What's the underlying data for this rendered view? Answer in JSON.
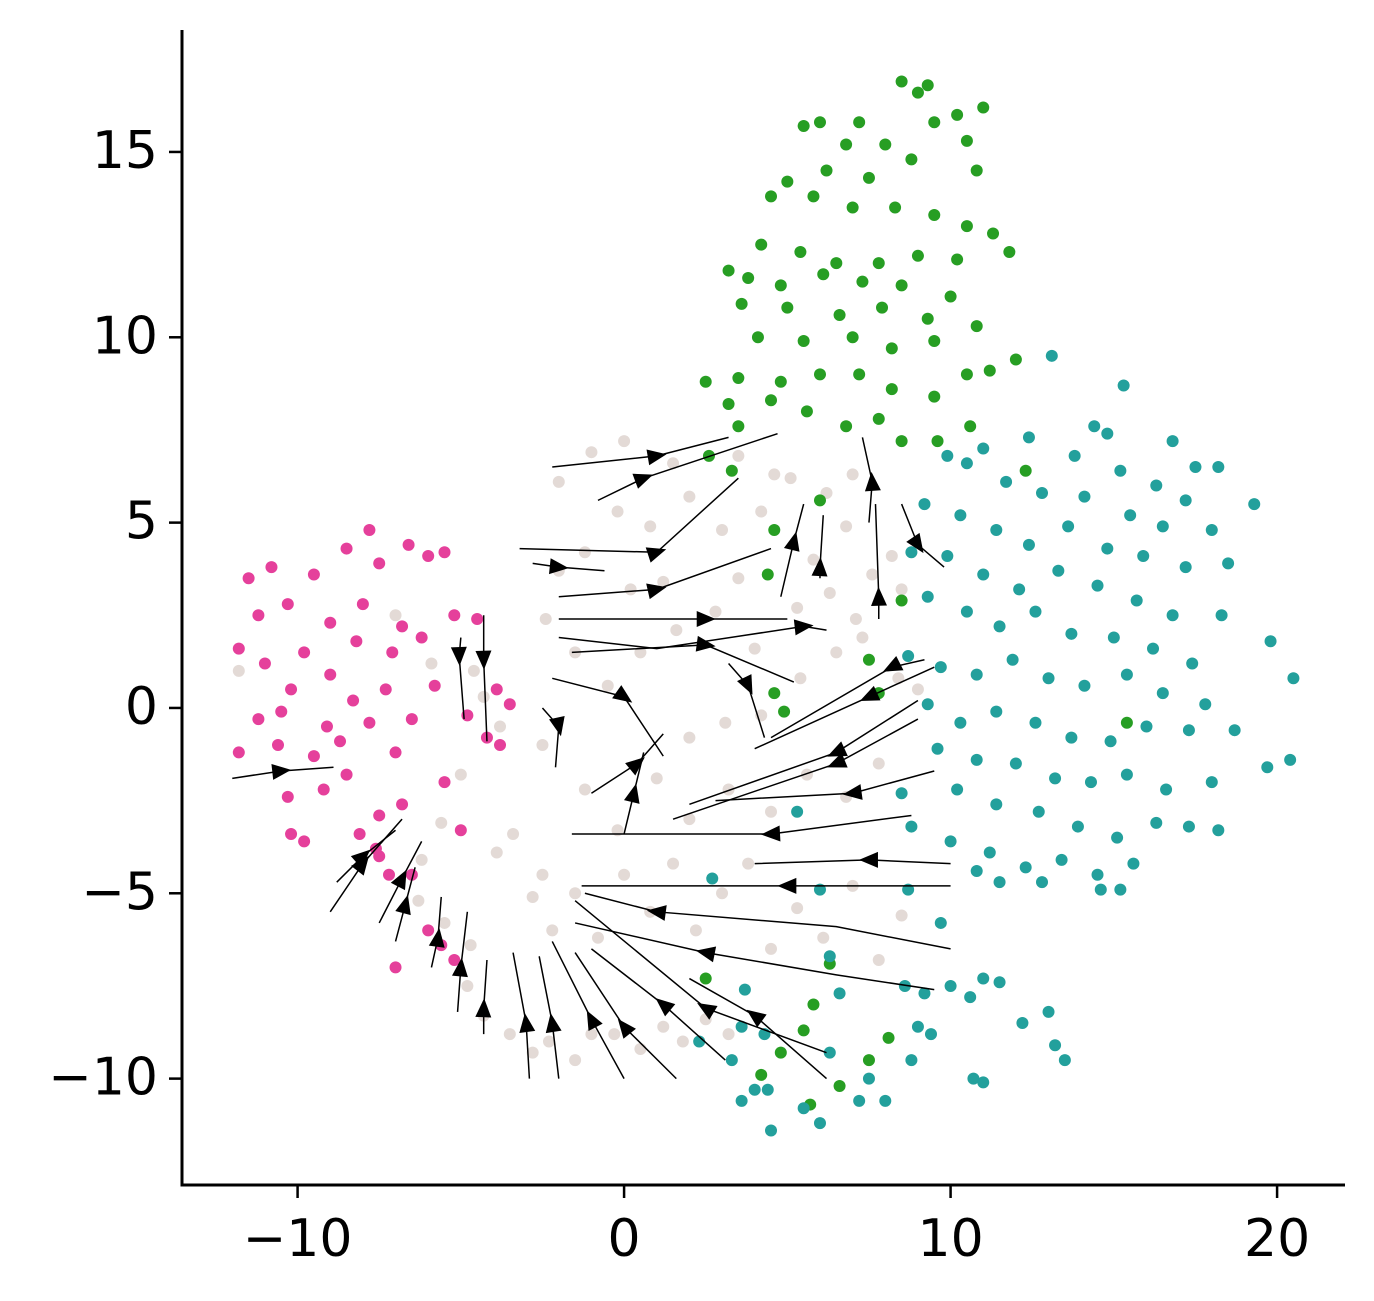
{
  "chart_data": {
    "type": "scatter",
    "xlim": [
      -13.54,
      22.08
    ],
    "ylim": [
      -12.87,
      18.29
    ],
    "xticks": [
      {
        "value": -10,
        "label": "−10"
      },
      0,
      10,
      20
    ],
    "yticks": [
      {
        "value": -10,
        "label": "−10"
      },
      {
        "value": -5,
        "label": "−5"
      },
      0,
      5,
      10,
      15
    ],
    "series": [
      {
        "color": "#e3dad6",
        "x": [
          -11.8,
          -7,
          -5.9,
          -4.6,
          -4.3,
          -3.8,
          -5,
          -5.6,
          -6.2,
          -6.3,
          -5.5,
          -4.7,
          -4.8,
          -4.3,
          -3.5,
          -2.8,
          -2.3,
          -1.5,
          -1,
          -0.3,
          0.5,
          1.2,
          1.8,
          2.5,
          3.2,
          -3.4,
          -3.9,
          -2.8,
          -2.2,
          -1.5,
          -0.8,
          0,
          0.8,
          1.5,
          2.2,
          3,
          3.8,
          4.5,
          5.3,
          6.1,
          7,
          7.8,
          8.5,
          2,
          3.2,
          4.5,
          5.6,
          6.8,
          7.8,
          1,
          2,
          3.1,
          4.2,
          5.4,
          6.5,
          7.3,
          8.4,
          9,
          -1.5,
          -0.5,
          0.5,
          1.6,
          2.8,
          4,
          5.3,
          6.3,
          7.1,
          -2.4,
          -2,
          -1.2,
          -0.2,
          0.8,
          2,
          3,
          4.2,
          5.1,
          6.2,
          7,
          -2,
          -1,
          0,
          1.5,
          3.5,
          4.6,
          6.8,
          7.6,
          8.2,
          8.5,
          0.2,
          1.2,
          3.5,
          5.8,
          -1.2,
          -0.2,
          -2.5,
          -2.5
        ],
        "y": [
          1,
          2.5,
          1.2,
          1,
          0.3,
          -0.5,
          -1.8,
          -3.1,
          -4.1,
          -5.2,
          -5.8,
          -6.4,
          -7.5,
          -8.3,
          -8.8,
          -9.3,
          -9,
          -9.5,
          -8.8,
          -8.8,
          -9.2,
          -8.6,
          -9,
          -8.4,
          -8.8,
          -3.4,
          -3.9,
          -5.1,
          -6,
          -5,
          -6.2,
          -4.5,
          -5.5,
          -4.2,
          -6,
          -5,
          -4.2,
          -6.5,
          -5.4,
          -6.2,
          -4.8,
          -6.8,
          -5.6,
          -3,
          -2.2,
          -2.8,
          -1.8,
          -2.4,
          -1.5,
          -1.9,
          -0.8,
          -0.4,
          -0.2,
          0.8,
          1.5,
          1.9,
          0.8,
          0.5,
          1.5,
          0.6,
          1.5,
          2.1,
          2.6,
          1.6,
          2.7,
          3.1,
          2.4,
          2.4,
          3.7,
          4.2,
          5.3,
          4.9,
          5.7,
          4.8,
          5.3,
          6.2,
          5.8,
          6.3,
          6.1,
          6.9,
          7.2,
          6.6,
          6.8,
          6.3,
          4.9,
          3.6,
          4.1,
          3.2,
          3.2,
          3.4,
          3.5,
          4,
          -2.2,
          -3.3,
          -1,
          -4.5
        ]
      },
      {
        "color": "#e5409b",
        "x": [
          -11.5,
          -10.8,
          -11.2,
          -10.3,
          -9.5,
          -8.5,
          -7.8,
          -7.5,
          -6.6,
          -6,
          -5.5,
          -9.8,
          -11,
          -11.8,
          -10.2,
          -9,
          -8.2,
          -7.1,
          -6.2,
          -5.2,
          -4.5,
          -11.2,
          -10.6,
          -11.8,
          -9.5,
          -8.7,
          -7.8,
          -7,
          -6.5,
          -5.8,
          -4.8,
          -3.5,
          -3.8,
          -10.3,
          -9.2,
          -8.5,
          -7.5,
          -6.8,
          -5.5,
          -5,
          -10.2,
          -9.8,
          -8.1,
          -7.6,
          -7.2,
          -6.5,
          -6,
          -5.6,
          -5.2,
          -7,
          -7.5,
          -9,
          -8,
          -6.8,
          -10.5,
          -9.1,
          -8.3,
          -7.3,
          -4.2,
          -3.9
        ],
        "y": [
          3.5,
          3.8,
          2.5,
          2.8,
          3.6,
          4.3,
          4.8,
          3.9,
          4.4,
          4.1,
          4.2,
          1.5,
          1.2,
          1.6,
          0.5,
          0.9,
          1.8,
          1.5,
          1.9,
          2.5,
          2.4,
          -0.3,
          -1,
          -1.2,
          -1.3,
          -0.9,
          -0.4,
          -1.2,
          -0.3,
          0.6,
          -0.2,
          0.1,
          -1,
          -2.4,
          -2.2,
          -1.8,
          -2.9,
          -2.6,
          -2,
          -3.3,
          -3.4,
          -3.6,
          -3.4,
          -3.8,
          -4.5,
          -4.5,
          -6,
          -6.4,
          -6.8,
          -7,
          -4,
          2.3,
          2.8,
          2.2,
          -0.1,
          -0.5,
          0.2,
          0.5,
          -0.8,
          0.5
        ]
      },
      {
        "color": "#279e23",
        "x": [
          8.5,
          9,
          9.3,
          7.2,
          6,
          5.5,
          6.8,
          8,
          9.5,
          10.2,
          11,
          10.5,
          5,
          6.2,
          7.5,
          8.8,
          10.8,
          4.5,
          5.8,
          7,
          8.3,
          9.5,
          10.5,
          11.3,
          4.2,
          5.4,
          6.5,
          7.8,
          9,
          10.2,
          11.8,
          3.8,
          4.8,
          6.1,
          7.3,
          8.5,
          10,
          3.2,
          3.6,
          5,
          6.6,
          7.9,
          9.3,
          10.8,
          4.1,
          5.5,
          7,
          8.2,
          9.5,
          11.2,
          12,
          2.5,
          3.5,
          4.8,
          6,
          7.2,
          8.2,
          9.5,
          10.5,
          3.2,
          4.5,
          5.6,
          6.8,
          7.8,
          8.5,
          9.6,
          10.6,
          3.5,
          2.6,
          3.3,
          4.6,
          4.4,
          6,
          8.5,
          7.5,
          4.6,
          7.8,
          4.9,
          12.3,
          15.4,
          2.5,
          4.2,
          4.8,
          5.5,
          5.8,
          6.3,
          6.6,
          7.5,
          8.1,
          5.7
        ],
        "y": [
          16.9,
          16.6,
          16.8,
          15.8,
          15.8,
          15.7,
          15.2,
          15.2,
          15.8,
          16,
          16.2,
          15.3,
          14.2,
          14.5,
          14.3,
          14.8,
          14.5,
          13.8,
          13.8,
          13.5,
          13.5,
          13.3,
          13,
          12.8,
          12.5,
          12.3,
          12,
          12,
          12.2,
          12.1,
          12.3,
          11.6,
          11.4,
          11.7,
          11.5,
          11.4,
          11.1,
          11.8,
          10.9,
          10.8,
          10.6,
          10.8,
          10.5,
          10.3,
          10,
          9.9,
          10,
          9.7,
          9.9,
          9.1,
          9.4,
          8.8,
          8.9,
          8.8,
          9,
          9,
          8.6,
          8.4,
          9,
          8.2,
          8.3,
          8,
          7.6,
          7.8,
          7.2,
          7.2,
          7.6,
          7.6,
          6.8,
          6.4,
          4.8,
          3.6,
          5.6,
          2.9,
          1.3,
          0.4,
          0.4,
          -0.1,
          6.4,
          -0.4,
          -7.3,
          -9.9,
          -9.3,
          -8.7,
          -8,
          -6.9,
          -10.2,
          -9.5,
          -8.9,
          -10.7
        ]
      },
      {
        "color": "#23a09c",
        "x": [
          13.1,
          15.3,
          14.4,
          14.8,
          16.8,
          17.5,
          18.2,
          12.4,
          11,
          13.8,
          15.2,
          16.3,
          17.2,
          19.3,
          9.9,
          10.5,
          11.7,
          12.8,
          14.1,
          15.5,
          16.5,
          18,
          9.2,
          10.3,
          11.4,
          12.4,
          13.6,
          14.8,
          15.9,
          17.2,
          18.5,
          8.8,
          9.9,
          11,
          12.1,
          13.3,
          14.5,
          15.7,
          16.8,
          18.3,
          9.3,
          10.5,
          11.5,
          12.6,
          13.7,
          15,
          16.2,
          17.4,
          19.8,
          8.7,
          9.7,
          10.8,
          11.9,
          13,
          14.1,
          15.4,
          16.5,
          17.8,
          20.5,
          9.3,
          10.3,
          11.4,
          12.6,
          13.7,
          14.9,
          16,
          17.3,
          18.7,
          9.6,
          10.8,
          12,
          13.2,
          14.3,
          15.4,
          16.6,
          18,
          19.7,
          20.4,
          8.5,
          10.2,
          11.4,
          12.7,
          13.9,
          15.1,
          16.3,
          17.3,
          18.2,
          8.8,
          10,
          11.2,
          12.3,
          13.4,
          14.5,
          15.6,
          12.8,
          14.6,
          15.2,
          8.7,
          9.7,
          10.8,
          11.5,
          6,
          2.7,
          5.3,
          4.3,
          3.6,
          2.3,
          3.3,
          4,
          4.4,
          3.6,
          4.5,
          5.5,
          6,
          6.3,
          7.2,
          7.5,
          8,
          8.8,
          9.4,
          9,
          8.6,
          9.2,
          10,
          10.6,
          11,
          11.5,
          12.2,
          13,
          13.2,
          13.5,
          11,
          10.7,
          6.3,
          6.6,
          3.7
        ],
        "y": [
          9.5,
          8.7,
          7.6,
          7.4,
          7.2,
          6.5,
          6.5,
          7.3,
          7,
          6.8,
          6.4,
          6,
          5.6,
          5.5,
          6.8,
          6.6,
          6.1,
          5.8,
          5.7,
          5.2,
          4.9,
          4.8,
          5.5,
          5.2,
          4.8,
          4.4,
          4.9,
          4.3,
          4.1,
          3.8,
          3.9,
          4.2,
          4.1,
          3.6,
          3.2,
          3.7,
          3.3,
          2.9,
          2.5,
          2.5,
          3,
          2.6,
          2.2,
          2.6,
          2,
          1.9,
          1.6,
          1.2,
          1.8,
          1.4,
          1.1,
          0.9,
          1.3,
          0.8,
          0.6,
          0.9,
          0.4,
          0.1,
          0.8,
          0.1,
          -0.4,
          -0.1,
          -0.4,
          -0.8,
          -0.9,
          -0.5,
          -0.6,
          -0.6,
          -1.1,
          -1.4,
          -1.5,
          -1.9,
          -2,
          -1.8,
          -2.2,
          -2,
          -1.6,
          -1.4,
          -2.3,
          -2.2,
          -2.6,
          -2.8,
          -3.2,
          -3.5,
          -3.1,
          -3.2,
          -3.3,
          -3.2,
          -3.6,
          -3.9,
          -4.3,
          -4.1,
          -4.5,
          -4.2,
          -4.7,
          -4.9,
          -4.9,
          -4.9,
          -5.8,
          -4.4,
          -4.7,
          -4.9,
          -4.6,
          -2.8,
          -8.8,
          -8.6,
          -9,
          -9.5,
          -10.3,
          -10.3,
          -10.6,
          -11.4,
          -10.8,
          -11.2,
          -9.3,
          -10.6,
          -10,
          -10.6,
          -9.5,
          -8.8,
          -8.6,
          -7.5,
          -7.7,
          -7.5,
          -7.8,
          -7.3,
          -7.4,
          -8.5,
          -8.2,
          -9.1,
          -9.5,
          -10.1,
          -10,
          -6.7,
          -7.7,
          -7.6
        ]
      }
    ],
    "streamline_color": "#000000",
    "streamlines": [
      {
        "x": [
          -12,
          -10.5,
          -8.9
        ],
        "y": [
          -1.9,
          -1.7,
          -1.6
        ]
      },
      {
        "x": [
          -5,
          -5.05,
          -4.9
        ],
        "y": [
          1.9,
          1.4,
          -0.3
        ]
      },
      {
        "x": [
          -4.3,
          -4.3,
          -4.2
        ],
        "y": [
          2.5,
          1.3,
          -0.9
        ]
      },
      {
        "x": [
          -2.5,
          -2,
          -2.1
        ],
        "y": [
          0,
          -0.5,
          -1.6
        ]
      },
      {
        "x": [
          -9,
          -8,
          -6.8
        ],
        "y": [
          -5.5,
          -4.2,
          -3
        ]
      },
      {
        "x": [
          -8.8,
          -8,
          -7
        ],
        "y": [
          -4.7,
          -4,
          -3.3
        ]
      },
      {
        "x": [
          -7.5,
          -6.8,
          -6.2
        ],
        "y": [
          -5.8,
          -4.6,
          -3.6
        ]
      },
      {
        "x": [
          -7,
          -6.7,
          -6.4
        ],
        "y": [
          -6.3,
          -5.3,
          -4.3
        ]
      },
      {
        "x": [
          -5.9,
          -5.7,
          -5.6
        ],
        "y": [
          -7,
          -6.2,
          -5.1
        ]
      },
      {
        "x": [
          -5.1,
          -5,
          -4.8
        ],
        "y": [
          -8.2,
          -7,
          -5.5
        ]
      },
      {
        "x": [
          -4.3,
          -4.3,
          -4.2
        ],
        "y": [
          -8.8,
          -8.1,
          -6.8
        ]
      },
      {
        "x": [
          -2.9,
          -3,
          -3.4
        ],
        "y": [
          -10,
          -8.5,
          -6.6
        ]
      },
      {
        "x": [
          -2,
          -2.2,
          -2.6
        ],
        "y": [
          -10,
          -8.5,
          -6.7
        ]
      },
      {
        "x": [
          0,
          -1,
          -2.2
        ],
        "y": [
          -10,
          -8.4,
          -6.3
        ]
      },
      {
        "x": [
          1.6,
          0,
          -1.5
        ],
        "y": [
          -10,
          -8.6,
          -6.6
        ]
      },
      {
        "x": [
          3.1,
          1.2,
          -1
        ],
        "y": [
          -9.5,
          -8,
          -6.5
        ]
      },
      {
        "x": [
          6.2,
          4,
          2
        ],
        "y": [
          -10,
          -8.3,
          -7.3
        ]
      },
      {
        "x": [
          6.2,
          2.5,
          -1.5
        ],
        "y": [
          -9.3,
          -8.1,
          -5.2
        ]
      },
      {
        "x": [
          9.5,
          6.5,
          2.5,
          -1.5
        ],
        "y": [
          -7.6,
          -7.2,
          -6.6,
          -5.8
        ]
      },
      {
        "x": [
          10,
          6.5,
          1,
          -1.2
        ],
        "y": [
          -6.5,
          -5.9,
          -5.5,
          -5
        ]
      },
      {
        "x": [
          10,
          5,
          -1.3
        ],
        "y": [
          -4.8,
          -4.8,
          -4.8
        ]
      },
      {
        "x": [
          10,
          7.5,
          4
        ],
        "y": [
          -4.2,
          -4.1,
          -4.2
        ]
      },
      {
        "x": [
          8.8,
          4.5,
          -1.6
        ],
        "y": [
          -2.9,
          -3.4,
          -3.4
        ]
      },
      {
        "x": [
          9.5,
          7,
          2.8
        ],
        "y": [
          -1.7,
          -2.3,
          -2.5
        ]
      },
      {
        "x": [
          9,
          6.5,
          2
        ],
        "y": [
          0.2,
          -1.2,
          -2.6
        ]
      },
      {
        "x": [
          9.5,
          7.5,
          4
        ],
        "y": [
          1.1,
          0.3,
          -1.1
        ]
      },
      {
        "x": [
          9,
          6.5,
          1.5
        ],
        "y": [
          -0.3,
          -1.5,
          -3
        ]
      },
      {
        "x": [
          9.2,
          8.2,
          4.5
        ],
        "y": [
          1.3,
          1.1,
          -0.8
        ]
      },
      {
        "x": [
          -2.2,
          1,
          3.2
        ],
        "y": [
          6.5,
          6.8,
          7.3
        ]
      },
      {
        "x": [
          -0.8,
          0.6,
          4.7
        ],
        "y": [
          5.6,
          6.2,
          7.4
        ]
      },
      {
        "x": [
          -3.2,
          1,
          3.5
        ],
        "y": [
          4.3,
          4.2,
          6.2
        ]
      },
      {
        "x": [
          -2.8,
          -2,
          -0.6
        ],
        "y": [
          3.9,
          3.8,
          3.7
        ]
      },
      {
        "x": [
          -2,
          1,
          4.5
        ],
        "y": [
          3,
          3.2,
          4.3
        ]
      },
      {
        "x": [
          -2,
          2.5,
          5
        ],
        "y": [
          2.4,
          2.4,
          2.4
        ]
      },
      {
        "x": [
          -2,
          1,
          5.5,
          6.2
        ],
        "y": [
          1.9,
          1.6,
          2.2,
          2.1
        ]
      },
      {
        "x": [
          -1.6,
          2.5,
          5.2
        ],
        "y": [
          1.5,
          1.7,
          0.7
        ]
      },
      {
        "x": [
          -2.2,
          0,
          1.2
        ],
        "y": [
          0.8,
          0.3,
          -1.3
        ]
      },
      {
        "x": [
          3.2,
          3.8,
          4.3
        ],
        "y": [
          1.2,
          0.6,
          -0.8
        ]
      },
      {
        "x": [
          4.8,
          5.2,
          5.5
        ],
        "y": [
          3,
          4.5,
          5.5
        ]
      },
      {
        "x": [
          6,
          6,
          6.1
        ],
        "y": [
          3.5,
          3.8,
          5.2
        ]
      },
      {
        "x": [
          7.5,
          7.6,
          7.3
        ],
        "y": [
          5,
          6.1,
          7.3
        ]
      },
      {
        "x": [
          7.8,
          7.8,
          7.7
        ],
        "y": [
          2.4,
          3,
          5.5
        ]
      },
      {
        "x": [
          8.5,
          9,
          9.8
        ],
        "y": [
          5.5,
          4.4,
          3.8
        ]
      },
      {
        "x": [
          0,
          0.3,
          0.6
        ],
        "y": [
          -3.4,
          -2.3,
          -1.2
        ]
      },
      {
        "x": [
          -1,
          0.4,
          1.2
        ],
        "y": [
          -2.3,
          -1.5,
          -0.7
        ]
      }
    ]
  }
}
